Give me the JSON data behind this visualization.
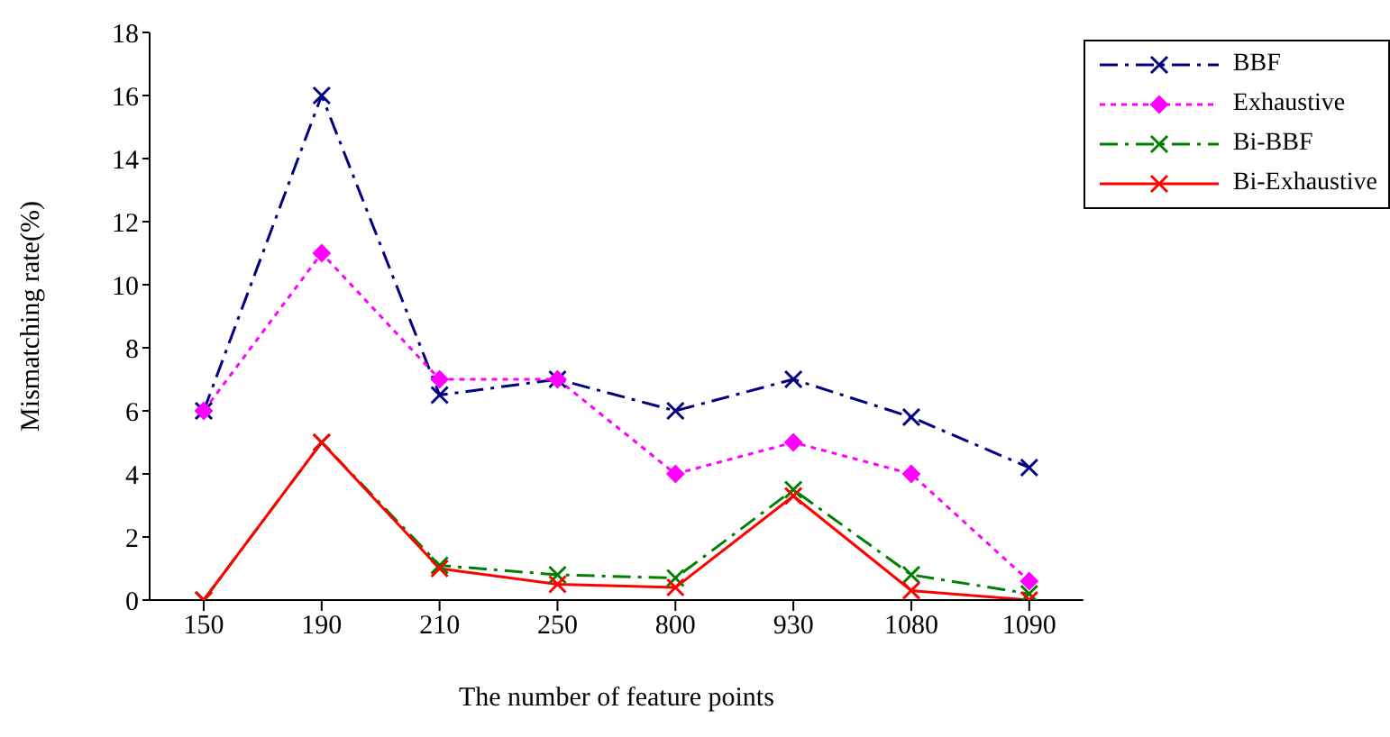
{
  "chart_data": {
    "type": "line",
    "xlabel": "The number of feature points",
    "ylabel": "Mismatching rate(%)",
    "categories": [
      "150",
      "190",
      "210",
      "250",
      "800",
      "930",
      "1080",
      "1090"
    ],
    "series": [
      {
        "name": "BBF",
        "color": "#000080",
        "marker": "cross",
        "line_style": "dashed",
        "values": [
          6,
          16,
          6.5,
          7,
          6,
          7,
          5.8,
          4.2
        ]
      },
      {
        "name": "Exhaustive",
        "color": "#ff00ff",
        "marker": "diamond",
        "line_style": "dotted",
        "values": [
          6,
          11,
          7,
          7,
          4,
          5,
          4,
          0.6
        ]
      },
      {
        "name": "Bi-BBF",
        "color": "#008000",
        "marker": "cross",
        "line_style": "dashed",
        "values": [
          0,
          5,
          1.1,
          0.8,
          0.7,
          3.5,
          0.8,
          0.2
        ]
      },
      {
        "name": "Bi-Exhaustive",
        "color": "#ff0000",
        "marker": "cross",
        "line_style": "solid",
        "values": [
          0,
          5,
          1,
          0.5,
          0.4,
          3.3,
          0.3,
          0
        ]
      }
    ],
    "ylim": [
      0,
      18
    ],
    "yticks": [
      0,
      2,
      4,
      6,
      8,
      10,
      12,
      14,
      16,
      18
    ],
    "grid": false,
    "legend": "top right"
  }
}
